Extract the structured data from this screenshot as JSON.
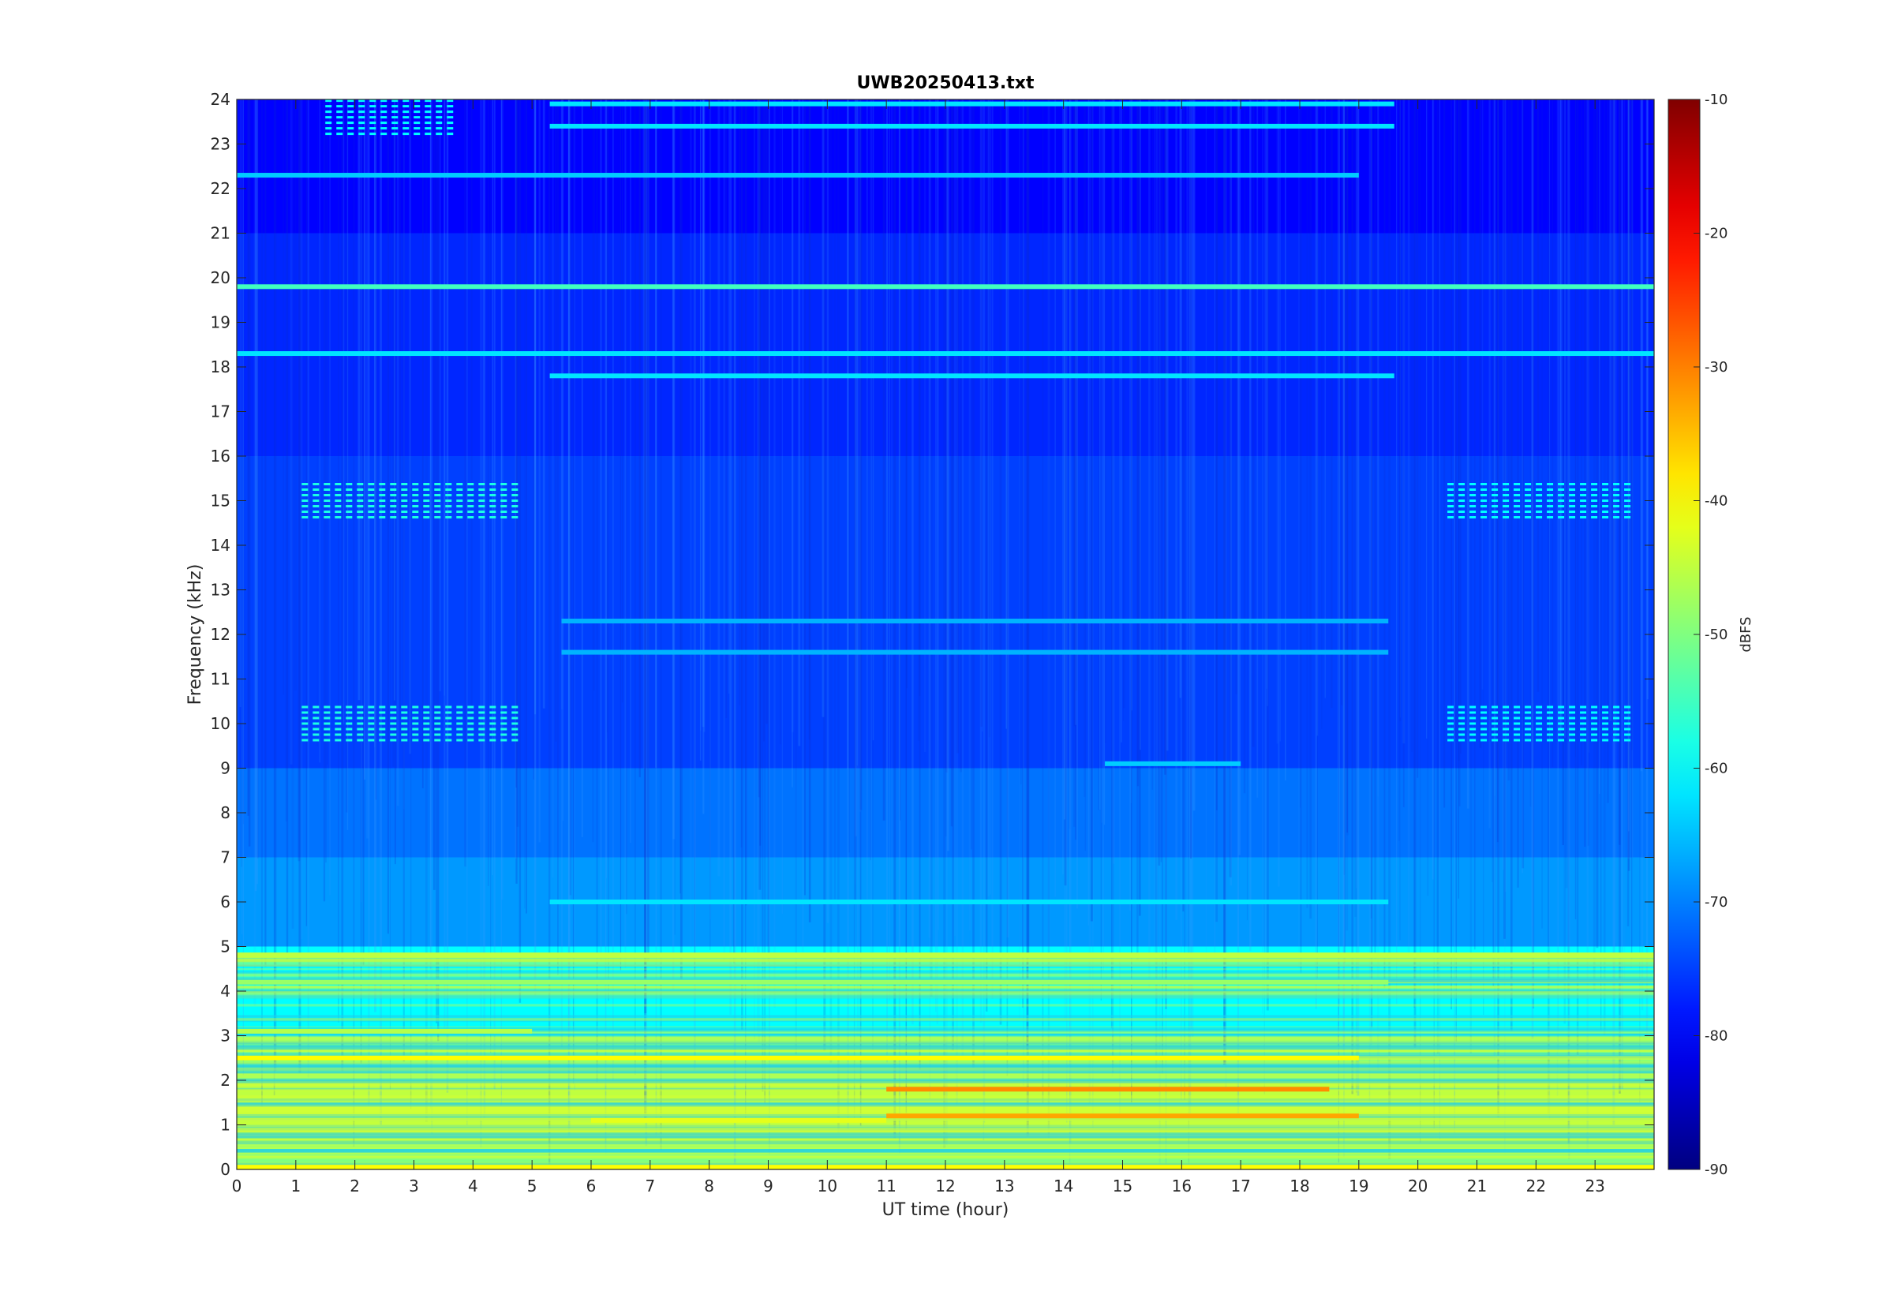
{
  "chart_data": {
    "type": "heatmap",
    "title": "UWB20250413.txt",
    "xlabel": "UT time (hour)",
    "ylabel": "Frequency (kHz)",
    "xlim": [
      0,
      24
    ],
    "ylim": [
      0,
      24
    ],
    "x_ticks": [
      "0",
      "1",
      "2",
      "3",
      "4",
      "5",
      "6",
      "7",
      "8",
      "9",
      "10",
      "11",
      "12",
      "13",
      "14",
      "15",
      "16",
      "17",
      "18",
      "19",
      "20",
      "21",
      "22",
      "23"
    ],
    "y_ticks": [
      "0",
      "1",
      "2",
      "3",
      "4",
      "5",
      "6",
      "7",
      "8",
      "9",
      "10",
      "11",
      "12",
      "13",
      "14",
      "15",
      "16",
      "17",
      "18",
      "19",
      "20",
      "21",
      "22",
      "23",
      "24"
    ],
    "colormap": "jet",
    "colorbar": {
      "label": "dBFS",
      "range": [
        -90,
        -10
      ],
      "ticks": [
        "-10",
        "-20",
        "-30",
        "-40",
        "-50",
        "-60",
        "-70",
        "-80",
        "-90"
      ]
    },
    "background_level_dBFS": -76,
    "level_by_frequency_band": [
      {
        "band_kHz": [
          0,
          0.6
        ],
        "level_dBFS": -50
      },
      {
        "band_kHz": [
          0.6,
          2.0
        ],
        "level_dBFS": -45
      },
      {
        "band_kHz": [
          2.0,
          3.0
        ],
        "level_dBFS": -50
      },
      {
        "band_kHz": [
          3.0,
          5.0
        ],
        "level_dBFS": -60
      },
      {
        "band_kHz": [
          5.0,
          7.0
        ],
        "level_dBFS": -68
      },
      {
        "band_kHz": [
          7.0,
          9.0
        ],
        "level_dBFS": -71
      },
      {
        "band_kHz": [
          9.0,
          16.0
        ],
        "level_dBFS": -75
      },
      {
        "band_kHz": [
          16.0,
          21.0
        ],
        "level_dBFS": -77
      },
      {
        "band_kHz": [
          21.0,
          24.0
        ],
        "level_dBFS": -80
      }
    ],
    "narrowband_lines": [
      {
        "freq_kHz": 0.05,
        "level_dBFS": -40,
        "t_start": 0,
        "t_end": 24
      },
      {
        "freq_kHz": 1.1,
        "level_dBFS": -42,
        "t_start": 6,
        "t_end": 11
      },
      {
        "freq_kHz": 1.2,
        "level_dBFS": -33,
        "t_start": 11,
        "t_end": 19
      },
      {
        "freq_kHz": 1.8,
        "level_dBFS": -31,
        "t_start": 11,
        "t_end": 18.5
      },
      {
        "freq_kHz": 2.5,
        "level_dBFS": -40,
        "t_start": 0,
        "t_end": 19
      },
      {
        "freq_kHz": 3.1,
        "level_dBFS": -46,
        "t_start": 0,
        "t_end": 5
      },
      {
        "freq_kHz": 4.2,
        "level_dBFS": -48,
        "t_start": 0,
        "t_end": 19.5
      },
      {
        "freq_kHz": 4.8,
        "level_dBFS": -45,
        "t_start": 0,
        "t_end": 24
      },
      {
        "freq_kHz": 6.0,
        "level_dBFS": -62,
        "t_start": 5.3,
        "t_end": 19.5
      },
      {
        "freq_kHz": 9.1,
        "level_dBFS": -64,
        "t_start": 14.7,
        "t_end": 17
      },
      {
        "freq_kHz": 11.6,
        "level_dBFS": -66,
        "t_start": 5.5,
        "t_end": 19.5
      },
      {
        "freq_kHz": 12.3,
        "level_dBFS": -66,
        "t_start": 5.5,
        "t_end": 19.5
      },
      {
        "freq_kHz": 17.8,
        "level_dBFS": -62,
        "t_start": 5.3,
        "t_end": 19.6
      },
      {
        "freq_kHz": 18.3,
        "level_dBFS": -62,
        "t_start": 0,
        "t_end": 24
      },
      {
        "freq_kHz": 19.8,
        "level_dBFS": -55,
        "t_start": 0,
        "t_end": 24
      },
      {
        "freq_kHz": 22.3,
        "level_dBFS": -64,
        "t_start": 0,
        "t_end": 19
      },
      {
        "freq_kHz": 23.4,
        "level_dBFS": -62,
        "t_start": 5.3,
        "t_end": 19.6
      },
      {
        "freq_kHz": 23.9,
        "level_dBFS": -62,
        "t_start": 5.3,
        "t_end": 19.6
      }
    ],
    "pulsed_signal_blocks": [
      {
        "freq_kHz": 15.0,
        "level_dBFS": -58,
        "t_start": 1.1,
        "t_end": 4.7
      },
      {
        "freq_kHz": 10.0,
        "level_dBFS": -58,
        "t_start": 1.1,
        "t_end": 4.7
      },
      {
        "freq_kHz": 15.0,
        "level_dBFS": -60,
        "t_start": 20.5,
        "t_end": 23.5
      },
      {
        "freq_kHz": 10.0,
        "level_dBFS": -60,
        "t_start": 20.5,
        "t_end": 23.5
      },
      {
        "freq_kHz": 23.6,
        "level_dBFS": -60,
        "t_start": 1.5,
        "t_end": 3.6
      }
    ],
    "grid": false,
    "legend": "none"
  }
}
